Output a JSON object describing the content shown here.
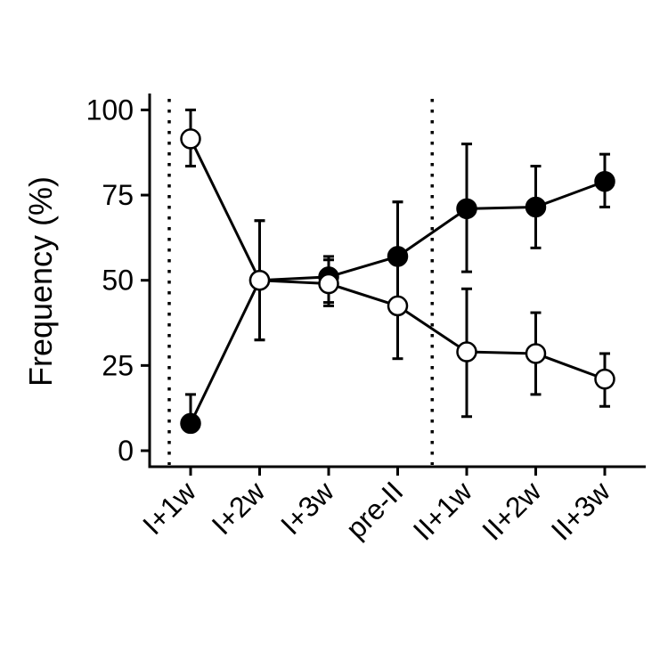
{
  "chart_data": {
    "type": "line",
    "title": "",
    "xlabel": "",
    "ylabel": "Frequency (%)",
    "categories": [
      "I+1w",
      "I+2w",
      "I+3w",
      "pre-II",
      "II+1w",
      "II+2w",
      "II+3w"
    ],
    "ylim": [
      -4,
      105
    ],
    "yticks": [
      0,
      25,
      50,
      75,
      100
    ],
    "grid": false,
    "legend": "none",
    "vertical_reference_lines": [
      {
        "x_between": [
          "before",
          "I+1w"
        ],
        "style": "dotted"
      },
      {
        "x_between": [
          "pre-II",
          "II+1w"
        ],
        "style": "dotted"
      }
    ],
    "series": [
      {
        "marker": "filled-circle",
        "color": "#000000",
        "values": [
          8,
          50,
          51,
          57,
          71,
          71.5,
          79
        ],
        "error_low": [
          8,
          32.5,
          43.5,
          41.5,
          52.5,
          59.5,
          71.5
        ],
        "error_high": [
          16.5,
          67.5,
          57,
          73,
          90,
          83.5,
          87
        ]
      },
      {
        "marker": "open-circle",
        "color": "#000000",
        "values": [
          91.5,
          50,
          49,
          42.5,
          29,
          28.5,
          21
        ],
        "error_low": [
          83.5,
          32.5,
          42.5,
          27,
          10,
          16.5,
          13
        ],
        "error_high": [
          100,
          67.5,
          56,
          73,
          47.5,
          40.5,
          28.5
        ]
      }
    ]
  }
}
